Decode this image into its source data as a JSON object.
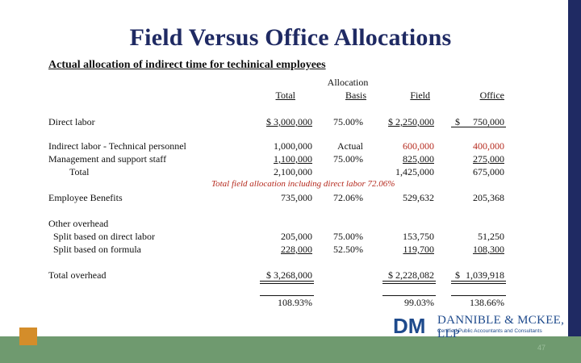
{
  "title": "Field Versus Office Allocations",
  "subtitle": "Actual allocation of indirect time for techinical employees",
  "headers": {
    "total": "Total",
    "allocation_line1": "Allocation",
    "basis": "Basis",
    "field": "Field",
    "office": "Office"
  },
  "rows": [
    {
      "label": "Direct labor",
      "total": "$    3,000,000",
      "basis": "75.00%",
      "field": "$    2,250,000",
      "office_sym": "$",
      "office": "750,000"
    },
    {
      "label": "Indirect labor - Technical personnel",
      "total": "1,000,000",
      "basis": "Actual",
      "field": "600,000",
      "office": "400,000"
    },
    {
      "label": "Management and support staff",
      "total": "1,100,000",
      "basis": "75.00%",
      "field": "825,000",
      "office": "275,000"
    },
    {
      "label": "Total",
      "total": "2,100,000",
      "basis": "",
      "field": "1,425,000",
      "office": "675,000"
    },
    {
      "label": "Employee Benefits",
      "total": "735,000",
      "basis": "72.06%",
      "field": "529,632",
      "office": "205,368"
    },
    {
      "label": "Other overhead",
      "total": "",
      "basis": "",
      "field": "",
      "office": ""
    },
    {
      "label": "Split based on direct labor",
      "total": "205,000",
      "basis": "75.00%",
      "field": "153,750",
      "office": "51,250"
    },
    {
      "label": "Split based on formula",
      "total": "228,000",
      "basis": "52.50%",
      "field": "119,700",
      "office": "108,300"
    },
    {
      "label": "Total overhead",
      "total": "$    3,268,000",
      "basis": "",
      "field": "$    2,228,082",
      "office_sym": "$",
      "office": "1,039,918"
    }
  ],
  "note": "Total field allocation including direct labor  72.06%",
  "ratios": {
    "total": "108.93%",
    "field": "99.03%",
    "office": "138.66%"
  },
  "logo": {
    "mark": "DM",
    "name": "DANNIBLE & MCKEE, LLP",
    "tagline": "Certified Public Accountants and Consultants"
  },
  "page_number": "47",
  "colors": {
    "title": "#1f2a63",
    "red": "#b52a1e",
    "band": "#6f9a6f",
    "accent": "#d48d2a",
    "logo": "#1e4a8c"
  }
}
